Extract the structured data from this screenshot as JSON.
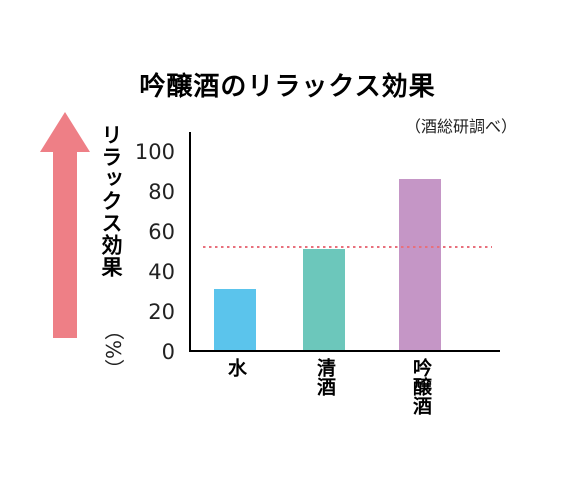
{
  "chart_data": {
    "type": "bar",
    "title": "吟醸酒のリラックス効果",
    "subtitle": "（酒総研調べ）",
    "ylabel": "リラックス効果",
    "yunit": "（%）",
    "categories": [
      "水",
      "清酒",
      "吟醸酒"
    ],
    "values": [
      31,
      51,
      86
    ],
    "ylim": [
      0,
      100
    ],
    "yticks": [
      0,
      20,
      40,
      60,
      80,
      100
    ],
    "reference_line": 52,
    "grid": false,
    "legend": "none",
    "colors": {
      "bars": [
        "#5bc4ec",
        "#6cc7bb",
        "#c596c6"
      ],
      "reference_line": "#e8707c",
      "arrow": "#ee7f86",
      "axis": "#000000"
    }
  }
}
